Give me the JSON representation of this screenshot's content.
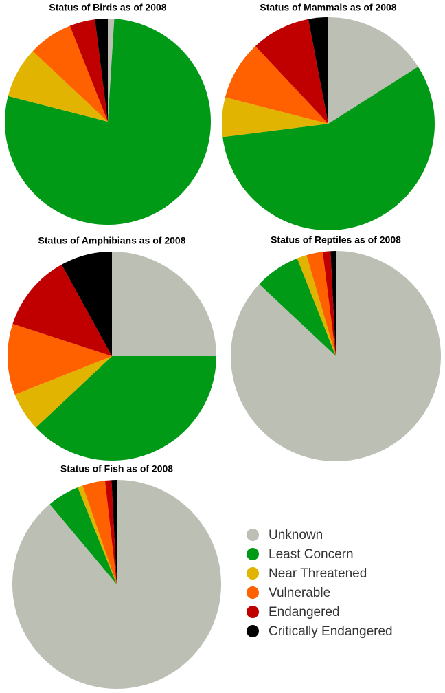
{
  "legend": {
    "categories": [
      "Unknown",
      "Least Concern",
      "Near Threatened",
      "Vulnerable",
      "Endangered",
      "Critically Endangered"
    ],
    "colors": [
      "#bcc0b4",
      "#009a17",
      "#e0b400",
      "#ff6000",
      "#c00000",
      "#000000"
    ]
  },
  "chart_data": [
    {
      "type": "pie",
      "title": "Status of Birds as of 2008",
      "values": [
        1,
        78,
        8,
        7,
        4,
        2
      ]
    },
    {
      "type": "pie",
      "title": "Status of Mammals as of 2008",
      "values": [
        16,
        57,
        6,
        9,
        9,
        3
      ]
    },
    {
      "type": "pie",
      "title": "Status of Amphibians as of 2008",
      "values": [
        25,
        38,
        6,
        11,
        12,
        8
      ]
    },
    {
      "type": "pie",
      "title": "Status of Reptiles as of 2008",
      "values": [
        87,
        7,
        1.5,
        2.5,
        1.2,
        0.8
      ]
    },
    {
      "type": "pie",
      "title": "Status of Fish as of 2008",
      "values": [
        88.9,
        5,
        0.8,
        3.5,
        1,
        0.8
      ]
    }
  ]
}
